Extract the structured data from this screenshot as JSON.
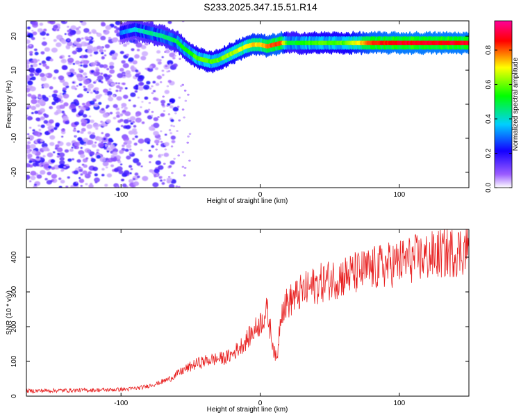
{
  "title": "S233.2025.347.15.51.R14",
  "chart_data": [
    {
      "type": "heatmap",
      "xlabel": "Height of straight line (km)",
      "ylabel": "Frequency (Hz)",
      "xlim": [
        -168,
        150
      ],
      "ylim": [
        -24.5,
        24.5
      ],
      "xticks": [
        -100,
        0,
        100
      ],
      "yticks": [
        -20,
        -10,
        0,
        10,
        20
      ],
      "colorbar": {
        "label": "Normalized spectral amplitude",
        "range": [
          0,
          0.97
        ],
        "ticks": [
          0.0,
          0.2,
          0.4,
          0.6,
          0.8
        ],
        "colormap": [
          "#ffffff",
          "#9b5cff",
          "#1400ff",
          "#00d0ff",
          "#00ff00",
          "#ffff00",
          "#ff0000",
          "#ff0099"
        ]
      },
      "noise_region_x": [
        -168,
        -75
      ],
      "signal_ridge": {
        "x": [
          -100,
          -90,
          -80,
          -70,
          -60,
          -55,
          -50,
          -45,
          -40,
          -35,
          -30,
          -25,
          -20,
          -15,
          -10,
          -5,
          0,
          5,
          10,
          15,
          20,
          40,
          60,
          80,
          100,
          120,
          150
        ],
        "freq_hz": [
          21,
          22,
          21,
          20,
          18.5,
          16.5,
          15,
          13.5,
          13,
          12.5,
          13,
          14,
          15,
          16,
          17,
          17.5,
          17.5,
          17,
          17.5,
          18,
          18,
          18,
          18,
          18,
          18,
          18,
          18
        ],
        "amplitude": [
          0.3,
          0.4,
          0.45,
          0.45,
          0.5,
          0.55,
          0.55,
          0.6,
          0.6,
          0.6,
          0.6,
          0.65,
          0.65,
          0.7,
          0.7,
          0.75,
          0.75,
          0.8,
          0.85,
          0.85,
          0.5,
          0.6,
          0.6,
          0.85,
          0.9,
          0.9,
          0.9
        ]
      }
    },
    {
      "type": "line",
      "xlabel": "Height of straight line (km)",
      "ylabel": "SNR (10 * v/v)",
      "xlim": [
        -168,
        150
      ],
      "ylim": [
        0,
        480
      ],
      "xticks": [
        -100,
        0,
        100
      ],
      "yticks": [
        0,
        100,
        200,
        300,
        400
      ],
      "series": [
        {
          "color": "#e82020",
          "x": [
            -168,
            -150,
            -130,
            -110,
            -95,
            -85,
            -75,
            -65,
            -55,
            -45,
            -35,
            -25,
            -20,
            -15,
            -10,
            -5,
            0,
            5,
            10,
            12,
            15,
            20,
            25,
            30,
            40,
            50,
            60,
            70,
            80,
            90,
            100,
            110,
            120,
            130,
            140,
            150
          ],
          "y": [
            15,
            16,
            17,
            18,
            20,
            25,
            35,
            50,
            75,
            95,
            105,
            110,
            120,
            140,
            160,
            185,
            210,
            245,
            130,
            100,
            250,
            270,
            285,
            300,
            320,
            335,
            345,
            355,
            365,
            375,
            385,
            395,
            400,
            410,
            415,
            425
          ]
        }
      ]
    }
  ]
}
